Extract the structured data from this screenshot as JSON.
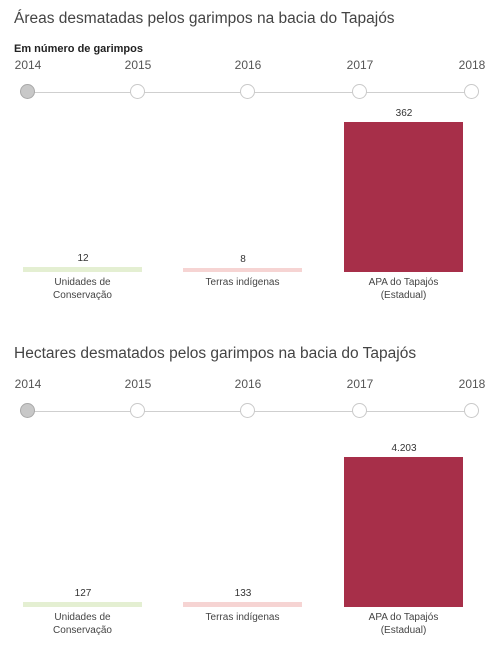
{
  "chart_data": [
    {
      "type": "bar",
      "title": "Áreas desmatadas pelos garimpos na bacia do Tapajós",
      "subtitle": "Em número de garimpos",
      "timeline": {
        "years": [
          "2014",
          "2015",
          "2016",
          "2017",
          "2018"
        ],
        "selected": "2014"
      },
      "categories": [
        "Unidades de Conservação",
        "Terras indígenas",
        "APA do Tapajós (Estadual)"
      ],
      "category_lines": [
        [
          "Unidades de",
          "Conservação"
        ],
        [
          "Terras indígenas"
        ],
        [
          "APA do Tapajós",
          "(Estadual)"
        ]
      ],
      "values": [
        12,
        8,
        362
      ],
      "value_labels": [
        "12",
        "8",
        "362"
      ],
      "colors": [
        "#e4efd2",
        "#f6d4d3",
        "#a72f49"
      ],
      "ylim": [
        0,
        362
      ],
      "grid": false,
      "xlabel": "",
      "ylabel": ""
    },
    {
      "type": "bar",
      "title": "Hectares desmatados pelos garimpos na bacia do Tapajós",
      "subtitle": "",
      "timeline": {
        "years": [
          "2014",
          "2015",
          "2016",
          "2017",
          "2018"
        ],
        "selected": "2014"
      },
      "categories": [
        "Unidades de Conservação",
        "Terras indígenas",
        "APA do Tapajós (Estadual)"
      ],
      "category_lines": [
        [
          "Unidades de",
          "Conservação"
        ],
        [
          "Terras indígenas"
        ],
        [
          "APA do Tapajós",
          "(Estadual)"
        ]
      ],
      "values": [
        127,
        133,
        4203
      ],
      "value_labels": [
        "127",
        "133",
        "4.203"
      ],
      "colors": [
        "#e4efd2",
        "#f6d4d3",
        "#a72f49"
      ],
      "ylim": [
        0,
        4203
      ],
      "grid": false,
      "xlabel": "",
      "ylabel": ""
    }
  ]
}
